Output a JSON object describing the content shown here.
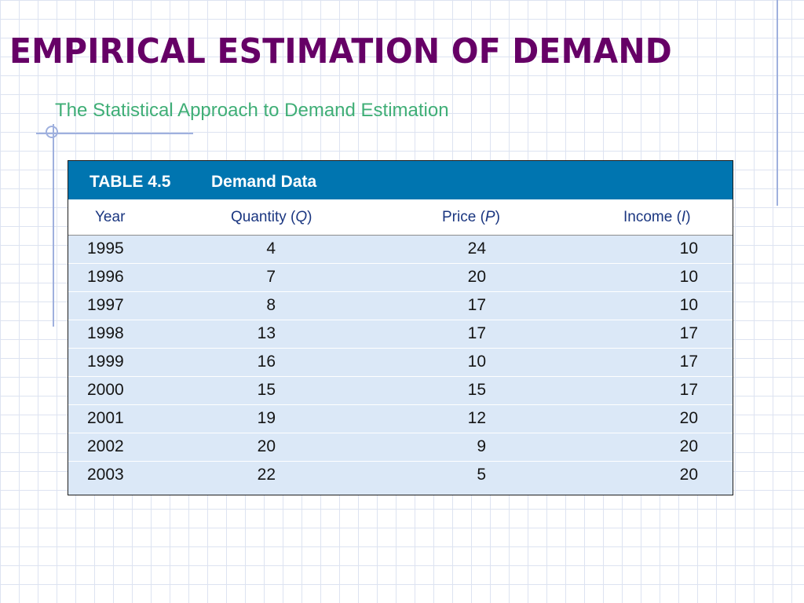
{
  "title": "EMPIRICAL ESTIMATION OF DEMAND",
  "subtitle": "The Statistical Approach to Demand Estimation",
  "table": {
    "label": "TABLE 4.5",
    "name": "Demand Data",
    "columns": {
      "year": "Year",
      "quantity": {
        "text": "Quantity (",
        "symbol": "Q",
        "close": ")"
      },
      "price": {
        "text": "Price (",
        "symbol": "P",
        "close": ")"
      },
      "income": {
        "text": "Income (",
        "symbol": "I",
        "close": ")"
      }
    },
    "rows": [
      {
        "year": "1995",
        "quantity": "4",
        "price": "24",
        "income": "10"
      },
      {
        "year": "1996",
        "quantity": "7",
        "price": "20",
        "income": "10"
      },
      {
        "year": "1997",
        "quantity": "8",
        "price": "17",
        "income": "10"
      },
      {
        "year": "1998",
        "quantity": "13",
        "price": "17",
        "income": "17"
      },
      {
        "year": "1999",
        "quantity": "16",
        "price": "10",
        "income": "17"
      },
      {
        "year": "2000",
        "quantity": "15",
        "price": "15",
        "income": "17"
      },
      {
        "year": "2001",
        "quantity": "19",
        "price": "12",
        "income": "20"
      },
      {
        "year": "2002",
        "quantity": "20",
        "price": "9",
        "income": "20"
      },
      {
        "year": "2003",
        "quantity": "22",
        "price": "5",
        "income": "20"
      }
    ]
  },
  "colors": {
    "title": "#660066",
    "subtitle": "#3fae76",
    "table_header_bg": "#0075b0",
    "column_header_text": "#1a3680",
    "row_bg": "#dbe8f7"
  }
}
